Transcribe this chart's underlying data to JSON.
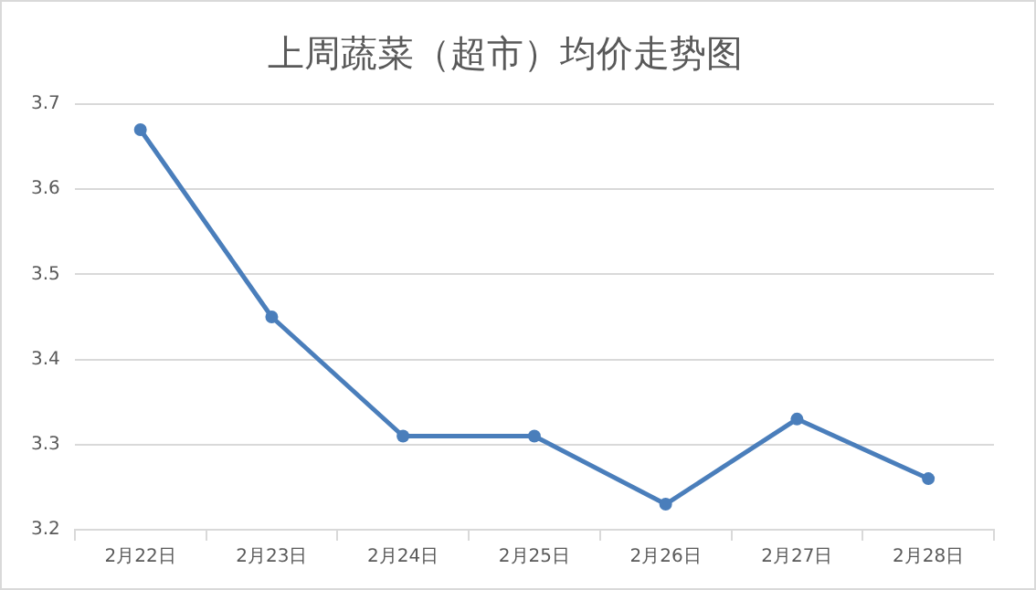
{
  "chart_data": {
    "type": "line",
    "title": "上周蔬菜（超市）均价走势图",
    "categories": [
      "2月22日",
      "2月23日",
      "2月24日",
      "2月25日",
      "2月26日",
      "2月27日",
      "2月28日"
    ],
    "series": [
      {
        "color": "#4a7ebb",
        "values": [
          3.67,
          3.45,
          3.31,
          3.31,
          3.23,
          3.33,
          3.26
        ]
      }
    ],
    "ylim": [
      3.2,
      3.7
    ],
    "yticks": [
      3.2,
      3.3,
      3.4,
      3.5,
      3.6,
      3.7
    ],
    "grid": "y",
    "legend": false,
    "marker": "circle",
    "line_style": "solid"
  }
}
